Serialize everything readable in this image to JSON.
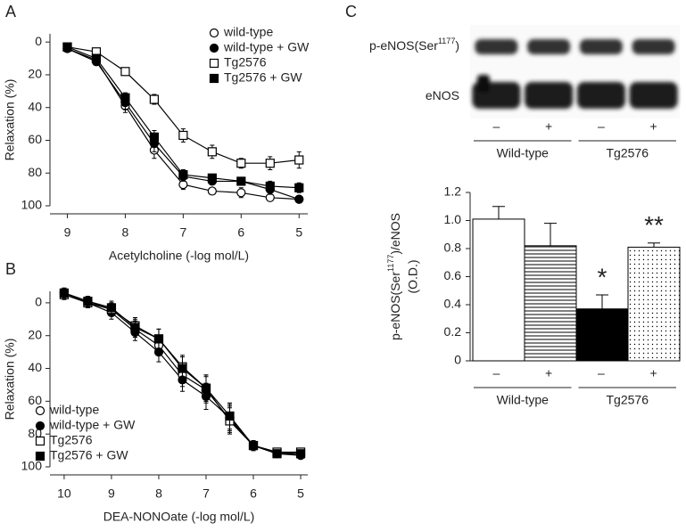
{
  "chart_data": [
    {
      "type": "line",
      "label": "A",
      "ylabel": "Relaxation (%)",
      "xlabel": "Acetylcholine (-log mol/L)",
      "x": [
        9,
        8.5,
        8,
        7.5,
        7,
        6.5,
        6,
        5.5,
        5
      ],
      "xlim": [
        9.3,
        4.85
      ],
      "xticks": [
        9,
        8,
        7,
        6,
        5
      ],
      "ylim": [
        -5,
        100
      ],
      "yticks": [
        0,
        20,
        40,
        60,
        80,
        100
      ],
      "y_inverted": true,
      "legend": "upper right",
      "series": [
        {
          "name": "wild-type",
          "color": "#000000",
          "marker": "circle-open",
          "values": [
            4,
            11,
            39,
            66,
            87,
            91,
            92,
            95,
            96
          ],
          "errors": [
            1,
            2,
            4,
            5,
            3,
            2,
            3,
            2,
            2
          ]
        },
        {
          "name": "wild-type + GW",
          "color": "#000000",
          "marker": "circle-filled",
          "values": [
            4,
            12,
            37,
            62,
            82,
            85,
            85,
            90,
            96
          ],
          "errors": [
            1,
            2,
            4,
            5,
            3,
            2,
            2,
            3,
            2
          ]
        },
        {
          "name": "Tg2576",
          "color": "#000000",
          "marker": "square-open",
          "values": [
            3,
            6,
            18,
            35,
            57,
            67,
            74,
            74,
            72
          ],
          "errors": [
            1,
            1,
            2,
            3,
            4,
            4,
            3,
            4,
            5
          ]
        },
        {
          "name": "Tg2576 + GW",
          "color": "#000000",
          "marker": "square-filled",
          "values": [
            3,
            10,
            34,
            58,
            81,
            83,
            85,
            88,
            89
          ],
          "errors": [
            1,
            2,
            3,
            4,
            3,
            2,
            2,
            3,
            3
          ]
        }
      ]
    },
    {
      "type": "line",
      "label": "B",
      "ylabel": "Relaxation (%)",
      "xlabel": "DEA-NONOate (-log mol/L)",
      "x": [
        10,
        9.5,
        9,
        8.5,
        8,
        7.5,
        7,
        6.5,
        6,
        5.5,
        5
      ],
      "xlim": [
        10.3,
        4.85
      ],
      "xticks": [
        10,
        9,
        8,
        7,
        6,
        5
      ],
      "ylim": [
        -7,
        100
      ],
      "yticks": [
        0,
        20,
        40,
        60,
        80,
        100
      ],
      "y_inverted": true,
      "legend": "lower left",
      "series": [
        {
          "name": "wild-type",
          "color": "#000000",
          "marker": "circle-open",
          "values": [
            -6,
            -1,
            4,
            16,
            26,
            44,
            53,
            71,
            87,
            91,
            92
          ],
          "errors": [
            3,
            3,
            4,
            5,
            6,
            7,
            8,
            8,
            3,
            2,
            2
          ]
        },
        {
          "name": "wild-type + GW",
          "color": "#000000",
          "marker": "circle-filled",
          "values": [
            -6,
            0,
            6,
            18,
            30,
            47,
            57,
            70,
            87,
            92,
            93
          ],
          "errors": [
            3,
            3,
            4,
            5,
            6,
            7,
            8,
            8,
            3,
            2,
            2
          ]
        },
        {
          "name": "Tg2576",
          "color": "#000000",
          "marker": "square-open",
          "values": [
            -5,
            0,
            4,
            14,
            22,
            39,
            52,
            72,
            87,
            91,
            91
          ],
          "errors": [
            3,
            3,
            4,
            5,
            6,
            7,
            8,
            8,
            3,
            2,
            2
          ]
        },
        {
          "name": "Tg2576 + GW",
          "color": "#000000",
          "marker": "square-filled",
          "values": [
            -6,
            -1,
            3,
            15,
            22,
            40,
            52,
            69,
            87,
            92,
            92
          ],
          "errors": [
            3,
            3,
            4,
            5,
            6,
            7,
            8,
            8,
            3,
            2,
            2
          ]
        }
      ]
    },
    {
      "type": "bar",
      "label": "C",
      "blot": {
        "rows": [
          {
            "text": "p-eNOS(Ser",
            "sup": "1177",
            "tail": ")"
          },
          {
            "text": "eNOS"
          }
        ],
        "lanes": [
          "–",
          "+",
          "–",
          "+"
        ],
        "groups": [
          "Wild-type",
          "Tg2576"
        ]
      },
      "ylabel": {
        "text": "p-eNOS(Ser",
        "sup": "1177",
        "tail": ")/eNOS",
        "line2": "(O.D.)"
      },
      "categories": [
        "–",
        "+",
        "–",
        "+"
      ],
      "groups": [
        "Wild-type",
        "Tg2576"
      ],
      "values": [
        1.01,
        0.82,
        0.37,
        0.81
      ],
      "errors": [
        0.09,
        0.16,
        0.1,
        0.03
      ],
      "fills": [
        "white",
        "hstripe",
        "black",
        "dots"
      ],
      "annotations": [
        "*",
        "**"
      ],
      "ylim": [
        0,
        1.2
      ],
      "yticks": [
        0,
        0.2,
        0.4,
        0.6,
        0.8,
        {
          "value": 1,
          "label": "1.0"
        },
        1.2
      ]
    }
  ]
}
